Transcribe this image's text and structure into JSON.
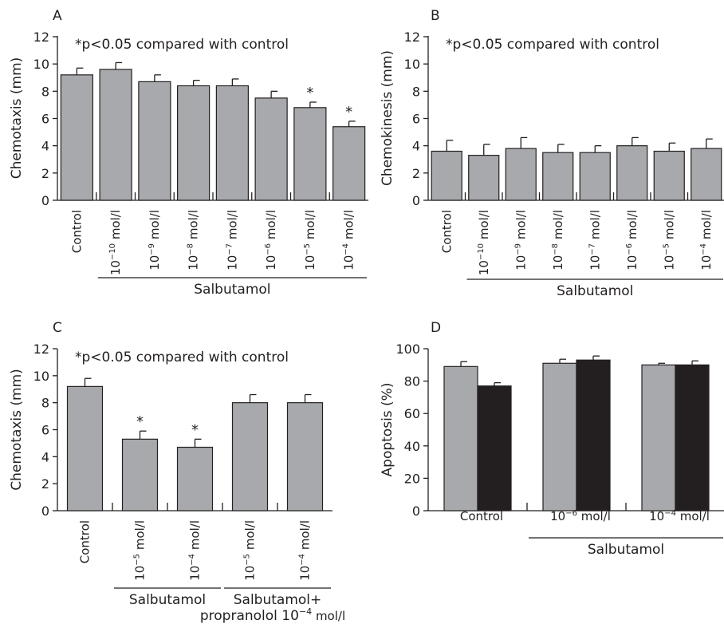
{
  "chart_data": [
    {
      "panel_letter": "A",
      "type": "bar",
      "annotation": "*p<0.05 compared with control",
      "ylabel": "Chemotaxis (mm)",
      "ylim": [
        0,
        12
      ],
      "yticks": [
        "0",
        "2",
        "4",
        "6",
        "8",
        "10",
        "12"
      ],
      "categories": [
        {
          "main": "Control",
          "exp": "",
          "unit": ""
        },
        {
          "main": "10",
          "exp": "−10",
          "unit": " mol/l"
        },
        {
          "main": "10",
          "exp": "−9",
          "unit": " mol/l"
        },
        {
          "main": "10",
          "exp": "−8",
          "unit": " mol/l"
        },
        {
          "main": "10",
          "exp": "−7",
          "unit": " mol/l"
        },
        {
          "main": "10",
          "exp": "−6",
          "unit": " mol/l"
        },
        {
          "main": "10",
          "exp": "−5",
          "unit": " mol/l"
        },
        {
          "main": "10",
          "exp": "−4",
          "unit": " mol/l"
        }
      ],
      "values": [
        9.2,
        9.6,
        8.7,
        8.4,
        8.4,
        7.5,
        6.8,
        5.4
      ],
      "errors": [
        0.5,
        0.5,
        0.5,
        0.4,
        0.5,
        0.5,
        0.4,
        0.4
      ],
      "significant": [
        false,
        false,
        false,
        false,
        false,
        false,
        true,
        true
      ],
      "asterisk": "*",
      "groups": [
        {
          "label": "Salbutamol",
          "from": 1,
          "to": 7
        }
      ]
    },
    {
      "panel_letter": "B",
      "type": "bar",
      "annotation": "*p<0.05 compared with control",
      "ylabel": "Chemokinesis (mm)",
      "ylim": [
        0,
        12
      ],
      "yticks": [
        "0",
        "2",
        "4",
        "6",
        "8",
        "10",
        "12"
      ],
      "categories": [
        {
          "main": "Control",
          "exp": "",
          "unit": ""
        },
        {
          "main": "10",
          "exp": "−10",
          "unit": " mol/l"
        },
        {
          "main": "10",
          "exp": "−9",
          "unit": " mol/l"
        },
        {
          "main": "10",
          "exp": "−8",
          "unit": " mol/l"
        },
        {
          "main": "10",
          "exp": "−7",
          "unit": " mol/l"
        },
        {
          "main": "10",
          "exp": "−6",
          "unit": " mol/l"
        },
        {
          "main": "10",
          "exp": "−5",
          "unit": " mol/l"
        },
        {
          "main": "10",
          "exp": "−4",
          "unit": " mol/l"
        }
      ],
      "values": [
        3.6,
        3.3,
        3.8,
        3.5,
        3.5,
        4.0,
        3.6,
        3.8
      ],
      "errors": [
        0.8,
        0.8,
        0.8,
        0.6,
        0.5,
        0.6,
        0.6,
        0.7
      ],
      "significant": [
        false,
        false,
        false,
        false,
        false,
        false,
        false,
        false
      ],
      "asterisk": "*",
      "groups": [
        {
          "label": "Salbutamol",
          "from": 1,
          "to": 7
        }
      ]
    },
    {
      "panel_letter": "C",
      "type": "bar",
      "annotation": "*p<0.05 compared with control",
      "ylabel": "Chemotaxis (mm)",
      "ylim": [
        0,
        12
      ],
      "yticks": [
        "0",
        "2",
        "4",
        "6",
        "8",
        "10",
        "12"
      ],
      "categories": [
        {
          "main": "Control",
          "exp": "",
          "unit": ""
        },
        {
          "main": "10",
          "exp": "−5",
          "unit": " mol/l"
        },
        {
          "main": "10",
          "exp": "−4",
          "unit": " mol/l"
        },
        {
          "main": "10",
          "exp": "−5",
          "unit": " mol/l"
        },
        {
          "main": "10",
          "exp": "−4",
          "unit": " mol/l"
        }
      ],
      "values": [
        9.2,
        5.3,
        4.7,
        8.0,
        8.0
      ],
      "errors": [
        0.6,
        0.6,
        0.6,
        0.6,
        0.6
      ],
      "significant": [
        false,
        true,
        true,
        false,
        false
      ],
      "asterisk": "*",
      "groups": [
        {
          "label": "Salbutamol",
          "from": 1,
          "to": 2
        },
        {
          "label": "Salbutamol+",
          "label2_main": "propranolol 10",
          "label2_exp": "−4",
          "label2_unit": " mol/l",
          "from": 3,
          "to": 4
        }
      ]
    },
    {
      "panel_letter": "D",
      "type": "bar",
      "ylabel": "Apoptosis (%)",
      "ylim": [
        0,
        100
      ],
      "yticks": [
        "0",
        "20",
        "40",
        "60",
        "80",
        "100"
      ],
      "categories": [
        {
          "main": "Control",
          "exp": "",
          "unit": ""
        },
        {
          "main": "10",
          "exp": "−6",
          "unit": " mol/l"
        },
        {
          "main": "10",
          "exp": "−4",
          "unit": " mol/l"
        }
      ],
      "series": [
        {
          "color": "#a7a9ac",
          "values": [
            89,
            91,
            90
          ],
          "errors": [
            3,
            2.5,
            1
          ]
        },
        {
          "color": "#231f20",
          "values": [
            77,
            93,
            90
          ],
          "errors": [
            2,
            2.5,
            2.5
          ]
        }
      ],
      "groups": [
        {
          "label": "Salbutamol",
          "from": 1,
          "to": 2
        }
      ]
    }
  ]
}
